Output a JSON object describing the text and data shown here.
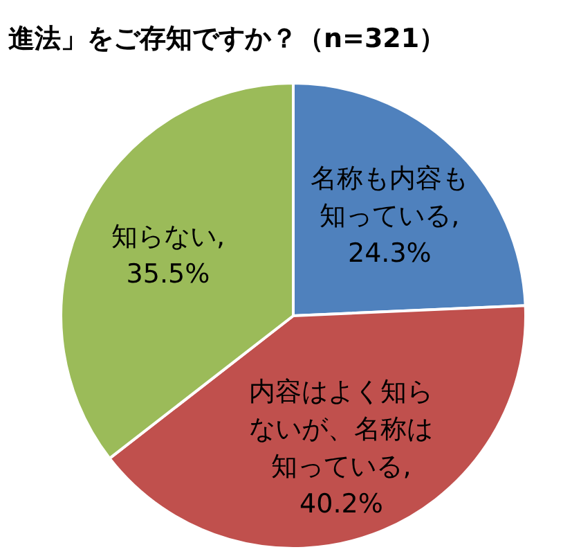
{
  "chart_data": {
    "type": "pie",
    "title": "進法」をご存知ですか？（n=321）",
    "categories": [
      "名称も内容も知っている",
      "内容はよく知らないが、名称は知っている",
      "知らない"
    ],
    "values": [
      24.3,
      40.2,
      35.5
    ],
    "colors": [
      "#4f81bd",
      "#c0504d",
      "#9bbb59"
    ],
    "value_labels": [
      ", 24.3%",
      ", 40.2%",
      ", 35.5%"
    ],
    "legend": false
  }
}
